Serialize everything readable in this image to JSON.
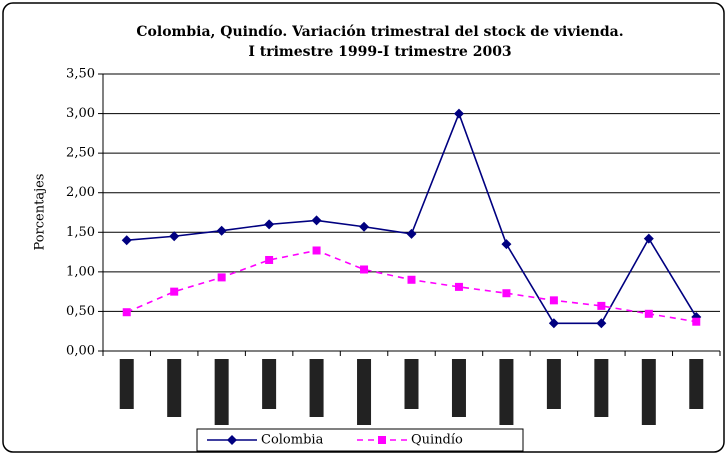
{
  "chart_data": {
    "type": "line",
    "title": "Colombia, Quindío. Variación trimestral del stock de vivienda.",
    "subtitle": "I trimestre 1999-I trimestre 2003",
    "y_label": "Porcentajes",
    "categories": [
      null,
      null,
      null,
      null,
      null,
      null,
      null,
      null,
      null,
      null,
      null,
      null,
      null
    ],
    "series": [
      {
        "name": "Colombia",
        "color": "#000080",
        "values": [
          1.4,
          1.45,
          1.52,
          1.6,
          1.65,
          1.57,
          1.48,
          3.0,
          1.35,
          0.35,
          0.35,
          1.42,
          0.43
        ]
      },
      {
        "name": "Quindío",
        "color": "#ff00ff",
        "values": [
          0.49,
          0.75,
          0.93,
          1.15,
          1.27,
          1.03,
          0.9,
          0.81,
          0.73,
          0.64,
          0.57,
          0.47,
          0.37
        ]
      }
    ],
    "ylim": [
      0,
      3.5
    ],
    "yticks": [
      {
        "value": 0,
        "label": "0,00"
      },
      {
        "value": 0.5,
        "label": "0,50"
      },
      {
        "value": 1,
        "label": "1,00"
      },
      {
        "value": 1.5,
        "label": "1,50"
      },
      {
        "value": 2,
        "label": "2,00"
      },
      {
        "value": 2.5,
        "label": "2,50"
      },
      {
        "value": 3,
        "label": "3,00"
      },
      {
        "value": 3.5,
        "label": "3,50"
      }
    ],
    "grid": true,
    "legend": "bottom"
  }
}
